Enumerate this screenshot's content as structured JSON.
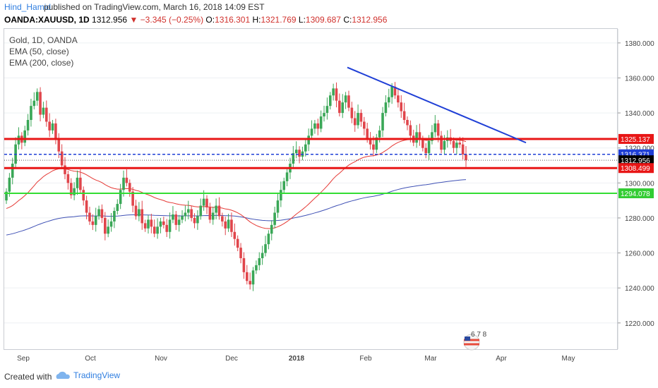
{
  "header": {
    "author": "Hind_Hamid",
    "published": "published on TradingView.com, March 16, 2018 14:09 EST"
  },
  "ohlc": {
    "symbol": "OANDA:XAUUSD, 1D",
    "last": "1312.956",
    "change": "−3.345 (−0.25%)",
    "open_label": "O:",
    "open": "1316.301",
    "high_label": "H:",
    "high": "1321.769",
    "low_label": "L:",
    "low": "1309.687",
    "close_label": "C:",
    "close": "1312.956"
  },
  "legend": {
    "line1": "Gold, 1D, OANDA",
    "line2": "EMA (50, close)",
    "line3": "EMA (200, close)"
  },
  "footer": {
    "created_with": "Created with",
    "brand": "TradingView"
  },
  "colors": {
    "up": "#3aa757",
    "down": "#e0454b",
    "ema50": "#e53935",
    "ema200": "#3f51b5",
    "resistance": "#e81616",
    "support_green": "#33dd33",
    "trendline": "#1f3fd6",
    "dashed_blue": "#1f3fd6"
  },
  "chart_data": {
    "type": "candlestick",
    "instrument": "Gold, 1D, OANDA",
    "ylim": [
      1205,
      1388
    ],
    "y_ticks": [
      "1220.000",
      "1240.000",
      "1260.000",
      "1280.000",
      "1300.000",
      "1320.000",
      "1340.000",
      "1360.000",
      "1380.000"
    ],
    "x_ticks": [
      "Sep",
      "Oct",
      "Nov",
      "Dec",
      "2018",
      "Feb",
      "Mar",
      "Apr",
      "May"
    ],
    "y_start": 1290,
    "candle_closes": [
      1295,
      1303,
      1311,
      1322,
      1327,
      1323,
      1330,
      1336,
      1344,
      1347,
      1352,
      1339,
      1343,
      1335,
      1330,
      1334,
      1325,
      1318,
      1310,
      1305,
      1300,
      1293,
      1297,
      1303,
      1296,
      1290,
      1283,
      1278,
      1276,
      1281,
      1285,
      1280,
      1271,
      1275,
      1278,
      1284,
      1288,
      1296,
      1303,
      1300,
      1295,
      1287,
      1281,
      1285,
      1277,
      1274,
      1279,
      1275,
      1271,
      1275,
      1278,
      1276,
      1272,
      1279,
      1282,
      1276,
      1279,
      1281,
      1283,
      1285,
      1280,
      1277,
      1281,
      1287,
      1291,
      1286,
      1279,
      1283,
      1287,
      1281,
      1278,
      1274,
      1279,
      1272,
      1268,
      1263,
      1257,
      1249,
      1244,
      1242,
      1250,
      1253,
      1257,
      1260,
      1265,
      1271,
      1276,
      1283,
      1290,
      1296,
      1301,
      1306,
      1311,
      1317,
      1319,
      1315,
      1318,
      1322,
      1327,
      1331,
      1334,
      1331,
      1338,
      1340,
      1344,
      1350,
      1354,
      1347,
      1340,
      1346,
      1350,
      1343,
      1337,
      1333,
      1340,
      1335,
      1331,
      1325,
      1322,
      1319,
      1326,
      1330,
      1340,
      1346,
      1349,
      1355,
      1350,
      1346,
      1341,
      1336,
      1333,
      1327,
      1323,
      1329,
      1325,
      1320,
      1317,
      1324,
      1329,
      1334,
      1327,
      1319,
      1324,
      1326,
      1324,
      1320,
      1323,
      1322,
      1316.3,
      1312.956
    ],
    "resistance": [
      1325.137,
      1308.499
    ],
    "support": [
      1294.078
    ],
    "dashed_level": 1316.371,
    "trendline_from_to": [
      1366,
      1323
    ],
    "price_labels": [
      "1325.137",
      "1316.371",
      "1312.956",
      "1308.499",
      "1294.078"
    ]
  }
}
